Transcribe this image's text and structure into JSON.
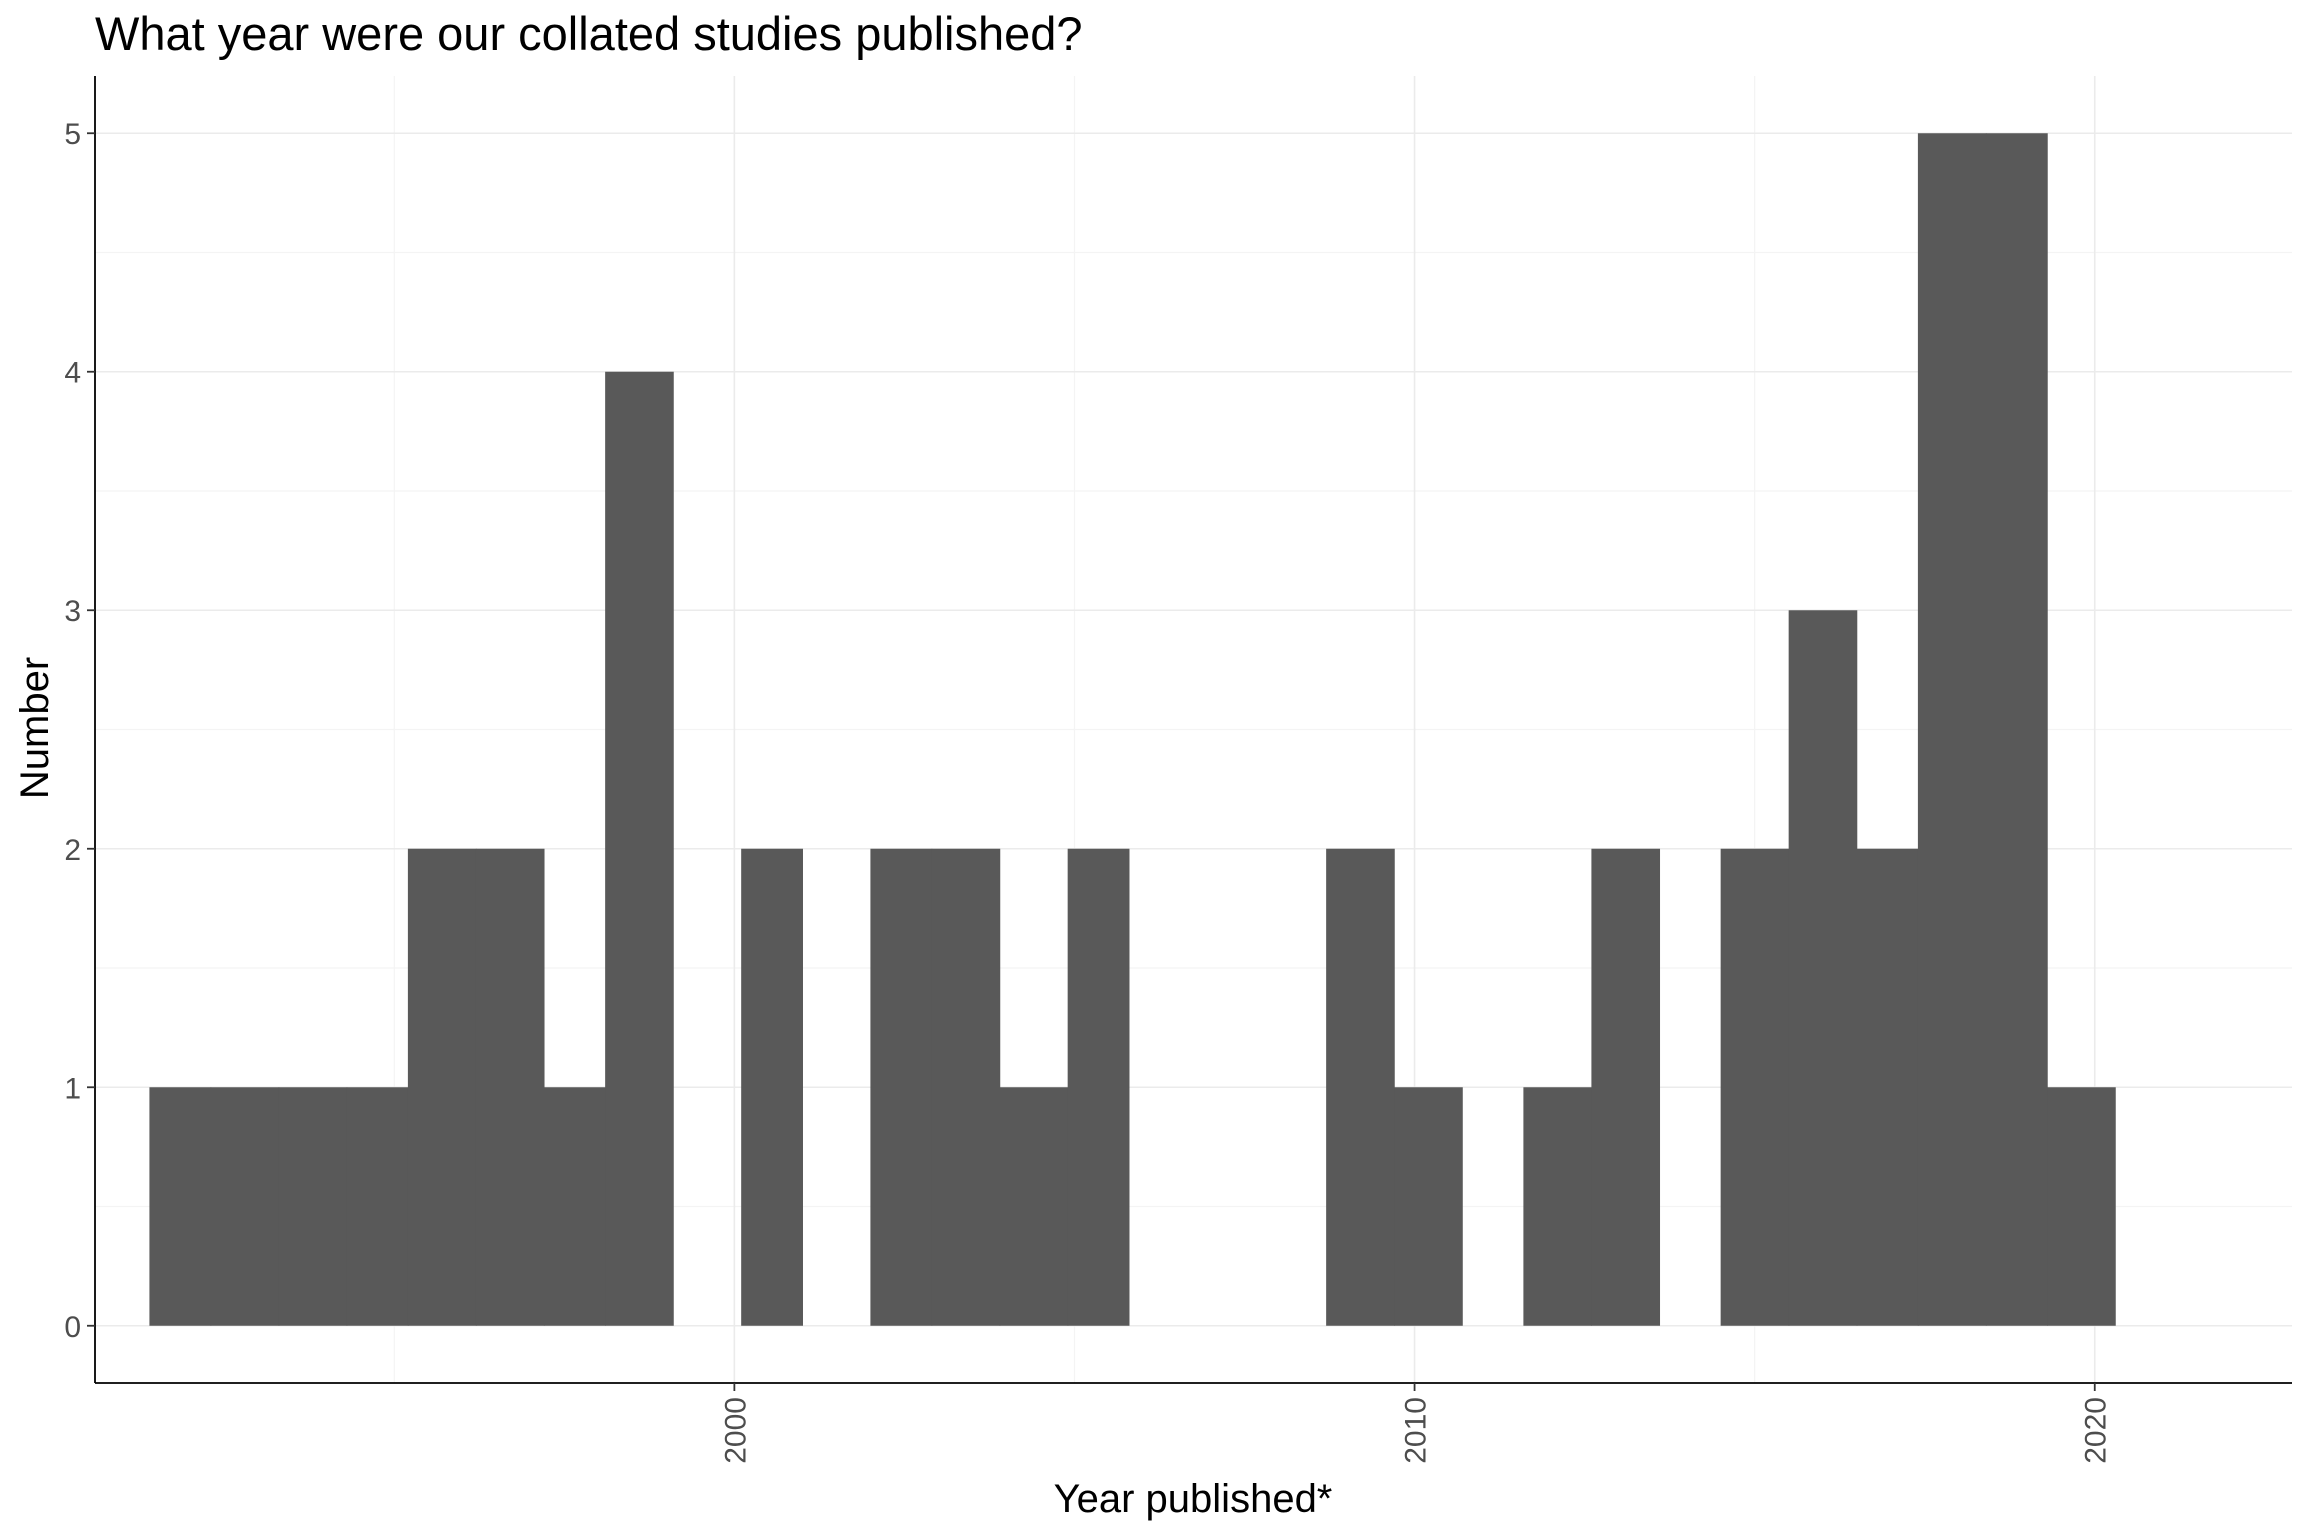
{
  "chart_data": {
    "type": "bar",
    "title": "What year were our collated studies published?",
    "xlabel": "Year published*",
    "ylabel": "Number",
    "x_ticks": [
      2000,
      2010,
      2020
    ],
    "y_ticks": [
      0,
      1,
      2,
      3,
      4,
      5
    ],
    "xlim": [
      1990.6,
      2022.9
    ],
    "ylim": [
      -0.24,
      5.24
    ],
    "grid": true,
    "bar_color": "#595959",
    "bins": [
      {
        "start": 1991.4,
        "end": 1992.3,
        "count": 1
      },
      {
        "start": 1992.3,
        "end": 1993.3,
        "count": 1
      },
      {
        "start": 1993.3,
        "end": 1994.3,
        "count": 1
      },
      {
        "start": 1994.3,
        "end": 1995.2,
        "count": 1
      },
      {
        "start": 1995.2,
        "end": 1996.2,
        "count": 2
      },
      {
        "start": 1996.2,
        "end": 1997.2,
        "count": 2
      },
      {
        "start": 1997.2,
        "end": 1998.1,
        "count": 1
      },
      {
        "start": 1998.1,
        "end": 1999.1,
        "count": 4
      },
      {
        "start": 1999.1,
        "end": 2000.1,
        "count": 0
      },
      {
        "start": 2000.1,
        "end": 2001.0,
        "count": 2
      },
      {
        "start": 2001.0,
        "end": 2002.0,
        "count": 0
      },
      {
        "start": 2002.0,
        "end": 2002.9,
        "count": 2
      },
      {
        "start": 2002.9,
        "end": 2003.9,
        "count": 2
      },
      {
        "start": 2003.9,
        "end": 2004.9,
        "count": 1
      },
      {
        "start": 2004.9,
        "end": 2005.8,
        "count": 2
      },
      {
        "start": 2005.8,
        "end": 2006.8,
        "count": 0
      },
      {
        "start": 2006.8,
        "end": 2007.8,
        "count": 0
      },
      {
        "start": 2007.8,
        "end": 2008.7,
        "count": 0
      },
      {
        "start": 2008.7,
        "end": 2009.7,
        "count": 2
      },
      {
        "start": 2009.7,
        "end": 2010.7,
        "count": 1
      },
      {
        "start": 2010.7,
        "end": 2011.6,
        "count": 0
      },
      {
        "start": 2011.6,
        "end": 2012.6,
        "count": 1
      },
      {
        "start": 2012.6,
        "end": 2013.6,
        "count": 2
      },
      {
        "start": 2013.6,
        "end": 2014.5,
        "count": 0
      },
      {
        "start": 2014.5,
        "end": 2015.5,
        "count": 2
      },
      {
        "start": 2015.5,
        "end": 2016.5,
        "count": 3
      },
      {
        "start": 2016.5,
        "end": 2017.4,
        "count": 2
      },
      {
        "start": 2017.4,
        "end": 2018.4,
        "count": 5
      },
      {
        "start": 2018.4,
        "end": 2019.3,
        "count": 5
      },
      {
        "start": 2019.3,
        "end": 2020.3,
        "count": 1
      }
    ]
  }
}
